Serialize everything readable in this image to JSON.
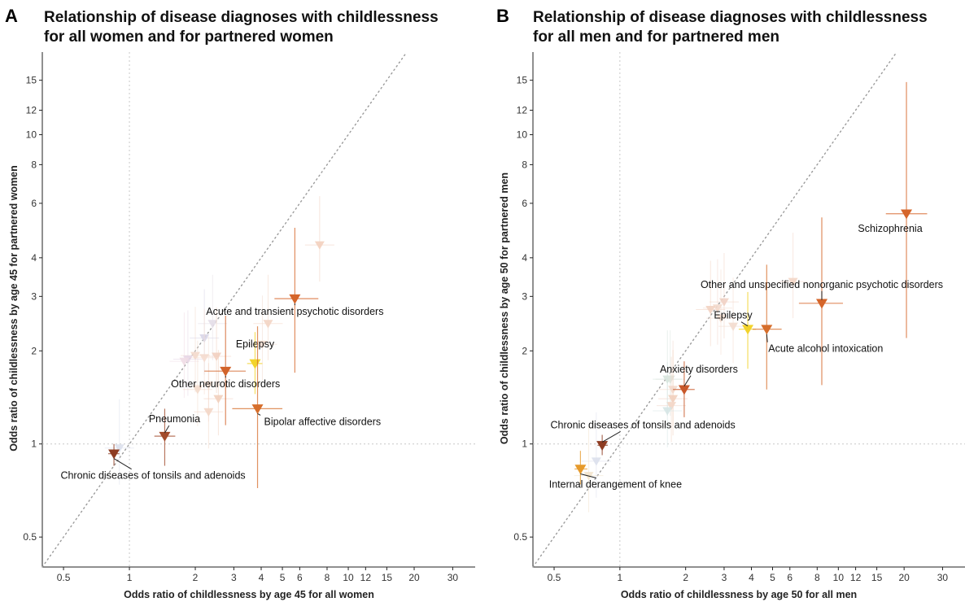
{
  "chart_data": [
    {
      "type": "scatter",
      "panel_letter": "A",
      "title": [
        "Relationship of disease diagnoses with childlessness",
        "for all women and for partnered women"
      ],
      "xlabel": "Odds ratio of childlessness by age 45 for all women",
      "ylabel": "Odds ratio of childlessness by age 45 for partnered women",
      "x_scale": "log",
      "y_scale": "log",
      "xlim": [
        0.4,
        38
      ],
      "ylim": [
        0.4,
        18.5
      ],
      "x_ticks": [
        0.5,
        1,
        2,
        3,
        4,
        5,
        6,
        8,
        10,
        12,
        15,
        20,
        30
      ],
      "y_ticks": [
        0.5,
        1,
        2,
        3,
        4,
        6,
        8,
        10,
        12,
        15
      ],
      "reference_lines": {
        "x": 1,
        "y": 1,
        "diagonal": true
      },
      "grid": false,
      "legend": "none",
      "highlighted": [
        {
          "label": "Acute and transient psychotic disorders",
          "x": 5.7,
          "y": 2.95,
          "x_ci": [
            4.6,
            7.3
          ],
          "y_ci": [
            1.7,
            5.0
          ],
          "color": "#D5652A"
        },
        {
          "label": "Epilepsy",
          "x": 3.75,
          "y": 1.82,
          "x_ci": [
            3.45,
            4.05
          ],
          "y_ci": [
            1.45,
            2.3
          ],
          "color": "#F2D32B"
        },
        {
          "label": "Other neurotic disorders",
          "x": 2.75,
          "y": 1.72,
          "x_ci": [
            2.2,
            3.4
          ],
          "y_ci": [
            1.15,
            2.6
          ],
          "color": "#D2632A"
        },
        {
          "label": "Bipolar affective disorders",
          "x": 3.85,
          "y": 1.3,
          "x_ci": [
            2.95,
            5.0
          ],
          "y_ci": [
            0.72,
            2.4
          ],
          "color": "#D66E2B"
        },
        {
          "label": "Pneumonia",
          "x": 1.45,
          "y": 1.06,
          "x_ci": [
            1.3,
            1.62
          ],
          "y_ci": [
            0.85,
            1.3
          ],
          "color": "#A24A2A"
        },
        {
          "label": "Chronic diseases of tonsils and adenoids",
          "x": 0.85,
          "y": 0.93,
          "x_ci": [
            0.8,
            0.9
          ],
          "y_ci": [
            0.85,
            1.0
          ],
          "color": "#8E3C22"
        }
      ],
      "background_points": [
        {
          "x": 7.4,
          "y": 4.4,
          "color": "#F3D0BE"
        },
        {
          "x": 4.3,
          "y": 2.45,
          "color": "#F3D5C4"
        },
        {
          "x": 2.2,
          "y": 2.2,
          "color": "#D9D6E8"
        },
        {
          "x": 2.4,
          "y": 2.45,
          "color": "#E4DEE8"
        },
        {
          "x": 2.5,
          "y": 1.92,
          "color": "#F2CFC0"
        },
        {
          "x": 2.2,
          "y": 1.9,
          "color": "#F5DDD0"
        },
        {
          "x": 2.0,
          "y": 1.93,
          "color": "#F3D9CC"
        },
        {
          "x": 1.85,
          "y": 1.88,
          "color": "#E6D6E6"
        },
        {
          "x": 1.78,
          "y": 1.85,
          "color": "#F0DDE6"
        },
        {
          "x": 2.3,
          "y": 1.55,
          "color": "#F5E2D6"
        },
        {
          "x": 2.05,
          "y": 1.5,
          "color": "#F3DCCC"
        },
        {
          "x": 2.55,
          "y": 1.4,
          "color": "#F1CFBD"
        },
        {
          "x": 2.3,
          "y": 1.27,
          "color": "#F3D6C6"
        },
        {
          "x": 4.05,
          "y": 2.1,
          "color": "#F3DDD0"
        },
        {
          "x": 0.9,
          "y": 0.97,
          "color": "#DCE0EC"
        }
      ]
    },
    {
      "type": "scatter",
      "panel_letter": "B",
      "title": [
        "Relationship of disease diagnoses with childlessness",
        "for all men and for partnered men"
      ],
      "xlabel": "Odds ratio of childlessness by age 50 for all men",
      "ylabel": "Odds ratio of childlessness by age 50 for partnered men",
      "x_scale": "log",
      "y_scale": "log",
      "xlim": [
        0.4,
        38
      ],
      "ylim": [
        0.4,
        18.5
      ],
      "x_ticks": [
        0.5,
        1,
        2,
        3,
        4,
        5,
        6,
        8,
        10,
        12,
        15,
        20,
        30
      ],
      "y_ticks": [
        0.5,
        1,
        2,
        3,
        4,
        6,
        8,
        10,
        12,
        15
      ],
      "reference_lines": {
        "x": 1,
        "y": 1,
        "diagonal": true
      },
      "grid": false,
      "legend": "none",
      "highlighted": [
        {
          "label": "Schizophrenia",
          "x": 20.5,
          "y": 5.55,
          "x_ci": [
            16.5,
            25.5
          ],
          "y_ci": [
            2.2,
            14.8
          ],
          "color": "#D5652A"
        },
        {
          "label": "Other and unspecified nonorganic psychotic disorders",
          "x": 8.4,
          "y": 2.85,
          "x_ci": [
            6.6,
            10.5
          ],
          "y_ci": [
            1.55,
            5.4
          ],
          "color": "#D5652A"
        },
        {
          "label": "Epilepsy",
          "x": 3.85,
          "y": 2.35,
          "x_ci": [
            3.5,
            4.2
          ],
          "y_ci": [
            1.75,
            3.1
          ],
          "color": "#F2D32B"
        },
        {
          "label": "Acute alcohol intoxication",
          "x": 4.7,
          "y": 2.35,
          "x_ci": [
            4.05,
            5.5
          ],
          "y_ci": [
            1.5,
            3.8
          ],
          "color": "#D66E2B"
        },
        {
          "label": "Anxiety disorders",
          "x": 1.97,
          "y": 1.5,
          "x_ci": [
            1.75,
            2.2
          ],
          "y_ci": [
            1.22,
            1.85
          ],
          "color": "#C8582A"
        },
        {
          "label": "Chronic diseases of tonsils and adenoids",
          "x": 0.83,
          "y": 0.99,
          "x_ci": [
            0.79,
            0.88
          ],
          "y_ci": [
            0.92,
            1.07
          ],
          "color": "#8E3C22"
        },
        {
          "label": "Internal derangement of knee",
          "x": 0.66,
          "y": 0.83,
          "x_ci": [
            0.62,
            0.71
          ],
          "y_ci": [
            0.74,
            0.95
          ],
          "color": "#E69A2B"
        }
      ],
      "background_points": [
        {
          "x": 6.2,
          "y": 3.35,
          "color": "#F3D6C6"
        },
        {
          "x": 3.0,
          "y": 2.88,
          "color": "#F1D2C4"
        },
        {
          "x": 2.8,
          "y": 2.75,
          "color": "#F3D9CC"
        },
        {
          "x": 2.6,
          "y": 2.72,
          "color": "#F2D3C2"
        },
        {
          "x": 2.9,
          "y": 2.55,
          "color": "#F5DFD2"
        },
        {
          "x": 3.3,
          "y": 2.4,
          "color": "#F3DBCE"
        },
        {
          "x": 1.65,
          "y": 1.62,
          "color": "#D6E4DC"
        },
        {
          "x": 1.7,
          "y": 1.62,
          "color": "#DDE6DE"
        },
        {
          "x": 1.75,
          "y": 1.5,
          "color": "#F3D9CC"
        },
        {
          "x": 1.75,
          "y": 1.4,
          "color": "#F1CFBD"
        },
        {
          "x": 1.72,
          "y": 1.33,
          "color": "#F3D6C6"
        },
        {
          "x": 1.65,
          "y": 1.28,
          "color": "#D6E6E6"
        },
        {
          "x": 0.78,
          "y": 0.88,
          "color": "#DCE0EC"
        },
        {
          "x": 0.72,
          "y": 0.79,
          "color": "#F3E4CC"
        }
      ]
    }
  ]
}
